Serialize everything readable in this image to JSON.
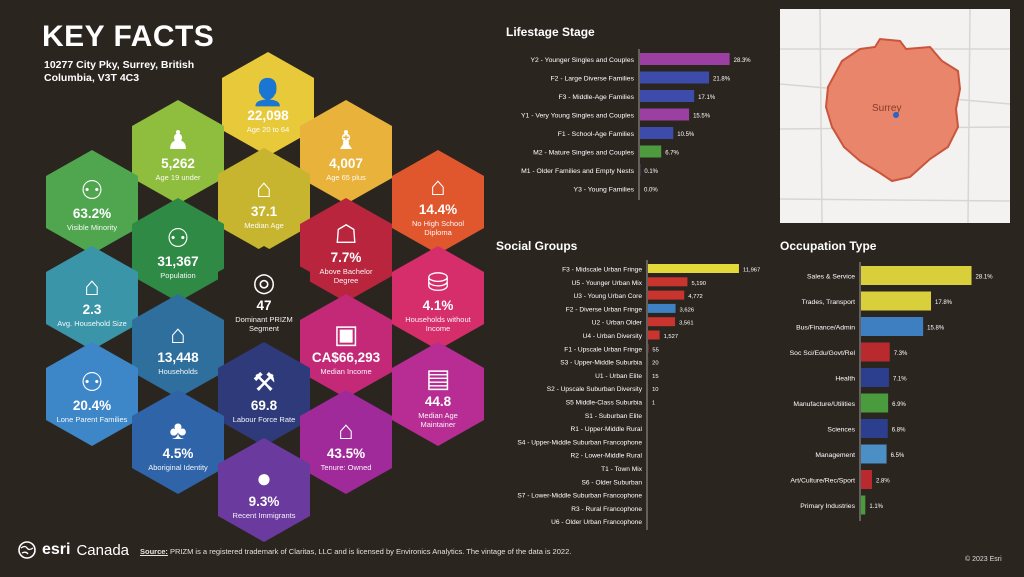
{
  "title": "KEY FACTS",
  "address": "10277 City Pky, Surrey, British Columbia, V3T 4C3",
  "hexes": [
    {
      "id": "age20-64",
      "value": "22,098",
      "label": "Age 20 to 64",
      "color": "#e8c93a",
      "icon": "person-icon"
    },
    {
      "id": "age19",
      "value": "5,262",
      "label": "Age 19 under",
      "color": "#8fbd3e",
      "icon": "child-icon"
    },
    {
      "id": "age65",
      "value": "4,007",
      "label": "Age 65 plus",
      "color": "#e9b23a",
      "icon": "elderly-icon"
    },
    {
      "id": "minority",
      "value": "63.2%",
      "label": "Visible Minority",
      "color": "#4fa64e",
      "icon": "people-icon"
    },
    {
      "id": "medianage",
      "value": "37.1",
      "label": "Median Age",
      "color": "#c7b52f",
      "icon": "cake-icon"
    },
    {
      "id": "nohs",
      "value": "14.4%",
      "label": "No High School Diploma",
      "color": "#e0572e",
      "icon": "graduation-cap-icon"
    },
    {
      "id": "population",
      "value": "31,367",
      "label": "Population",
      "color": "#2f8a45",
      "icon": "group-icon"
    },
    {
      "id": "bachelor",
      "value": "7.7%",
      "label": "Above Bachelor Degree",
      "color": "#b8253c",
      "icon": "school-icon"
    },
    {
      "id": "hhsize",
      "value": "2.3",
      "label": "Avg. Household Size",
      "color": "#3b95a8",
      "icon": "family-house-icon"
    },
    {
      "id": "prizm",
      "value": "47",
      "label": "Dominant PRIZM Segment",
      "color": "#2b2520",
      "icon": "prizm-icon"
    },
    {
      "id": "noincome",
      "value": "4.1%",
      "label": "Households without Income",
      "color": "#d62d6b",
      "icon": "coins-icon"
    },
    {
      "id": "households",
      "value": "13,448",
      "label": "Households",
      "color": "#2e6f9e",
      "icon": "house-people-icon"
    },
    {
      "id": "income",
      "value": "CA$66,293",
      "label": "Median Income",
      "color": "#c42978",
      "icon": "wallet-icon"
    },
    {
      "id": "loneparent",
      "value": "20.4%",
      "label": "Lone Parent Families",
      "color": "#3d86c7",
      "icon": "parent-child-icon"
    },
    {
      "id": "labour",
      "value": "69.8",
      "label": "Labour Force Rate",
      "color": "#2f3a7a",
      "icon": "worker-icon"
    },
    {
      "id": "maintainer",
      "value": "44.8",
      "label": "Median Age Maintainer",
      "color": "#b72d94",
      "icon": "id-card-icon"
    },
    {
      "id": "aboriginal",
      "value": "4.5%",
      "label": "Aboriginal Identity",
      "color": "#2f64a8",
      "icon": "tree-icon"
    },
    {
      "id": "owned",
      "value": "43.5%",
      "label": "Tenure: Owned",
      "color": "#a12a9a",
      "icon": "home-icon"
    },
    {
      "id": "immigrants",
      "value": "9.3%",
      "label": "Recent Immigrants",
      "color": "#6a3a9e",
      "icon": "globe-icon"
    }
  ],
  "lifestage": {
    "title": "Lifestage Stage",
    "chart_data": {
      "type": "bar",
      "categories": [
        "Y2 - Younger Singles and Couples",
        "F2 - Large Diverse Families",
        "F3 - Middle-Age Families",
        "Y1 - Very Young Singles and Couples",
        "F1 - School-Age Families",
        "M2 - Mature Singles and Couples",
        "M1 - Older Families and Empty Nests",
        "Y3 - Young Families"
      ],
      "values": [
        28.3,
        21.8,
        17.1,
        15.5,
        10.5,
        6.7,
        0.1,
        0.0
      ],
      "labels": [
        "28.3%",
        "21.8%",
        "17.1%",
        "15.5%",
        "10.5%",
        "6.7%",
        "0.1%",
        "0.0%"
      ],
      "colors": [
        "#9b3fa3",
        "#3d4bab",
        "#3d4bab",
        "#9b3fa3",
        "#3d4bab",
        "#4d9a3f",
        "#5a5aa8",
        "#9b3fa3"
      ],
      "max": 30
    }
  },
  "social": {
    "title": "Social Groups",
    "chart_data": {
      "type": "bar",
      "categories": [
        "F3 - Midscale Urban Fringe",
        "U5 - Younger Urban Mix",
        "U3 - Young Urban Core",
        "F2 - Diverse Urban Fringe",
        "U2 - Urban Older",
        "U4 - Urban Diversity",
        "F1 - Upscale Urban Fringe",
        "S3 - Upper-Middle Suburbia",
        "U1 - Urban Elite",
        "S2 - Upscale Suburban Diversity",
        "S5 Middle-Class Suburbia",
        "S1 - Suburban Elite",
        "R1 - Upper-Middle Rural",
        "S4 - Upper-Middle Suburban Francophone",
        "R2 - Lower-Middle Rural",
        "T1 - Town Mix",
        "S6 - Older Suburban",
        "S7 - Lower-Middle Suburban Francophone",
        "R3 - Rural Francophone",
        "U6 - Older Urban Francophone"
      ],
      "values": [
        11967,
        5190,
        4772,
        3626,
        3561,
        1527,
        55,
        20,
        15,
        10,
        1,
        0,
        0,
        0,
        0,
        0,
        0,
        0,
        0,
        0
      ],
      "labels": [
        "11,967",
        "5,190",
        "4,772",
        "3,626",
        "3,561",
        "1,527",
        "55",
        "20",
        "15",
        "10",
        "1",
        "",
        "",
        "",
        "",
        "",
        "",
        "",
        "",
        ""
      ],
      "colors": [
        "#e3d83a",
        "#c9352e",
        "#c9352e",
        "#3f82c4",
        "#c9352e",
        "#c9352e",
        "#c9352e",
        "#c9352e",
        "#c9352e",
        "#c9352e",
        "#c9352e",
        "#c9352e",
        "#c9352e",
        "#c9352e",
        "#c9352e",
        "#c9352e",
        "#c9352e",
        "#c9352e",
        "#c9352e",
        "#c9352e"
      ],
      "max": 12500
    }
  },
  "occupation": {
    "title": "Occupation Type",
    "chart_data": {
      "type": "bar",
      "categories": [
        "Sales & Service",
        "Trades, Transport",
        "Bus/Finance/Admin",
        "Soc Sci/Edu/Govt/Rel",
        "Health",
        "Manufacture/Utilities",
        "Sciences",
        "Management",
        "Art/Culture/Rec/Sport",
        "Primary Industries"
      ],
      "values": [
        28.1,
        17.8,
        15.8,
        7.3,
        7.1,
        6.9,
        6.8,
        6.5,
        2.8,
        1.1
      ],
      "labels": [
        "28.1%",
        "17.8%",
        "15.8%",
        "7.3%",
        "7.1%",
        "6.9%",
        "6.8%",
        "6.5%",
        "2.8%",
        "1.1%"
      ],
      "colors": [
        "#d8cf3a",
        "#d8cf3a",
        "#3d7fc0",
        "#b82a2e",
        "#2c3f8f",
        "#4a9a3e",
        "#2c3f8f",
        "#4b8fc4",
        "#b82a2e",
        "#4a9a3e"
      ],
      "max": 30
    }
  },
  "map": {
    "label": "Surrey",
    "fill": "#e8856b"
  },
  "footer": {
    "brand": "esri",
    "brand_suffix": "Canada",
    "source_label": "Source:",
    "source_text": " PRIZM is a registered trademark of Claritas, LLC and is licensed by Environics Analytics. The vintage of the data is 2022.",
    "copyright": "© 2023 Esri"
  }
}
